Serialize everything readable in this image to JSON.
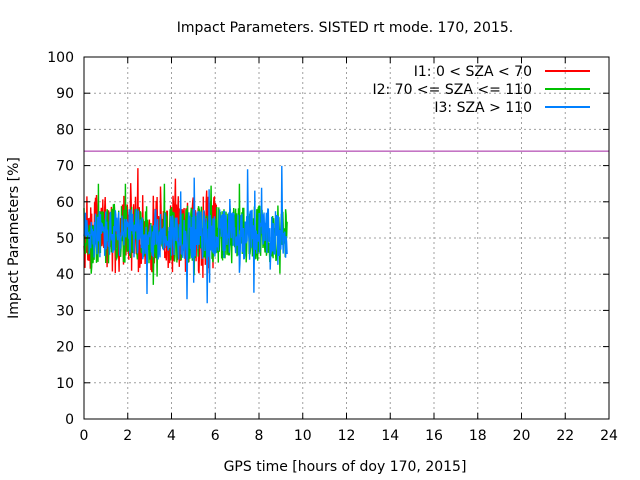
{
  "chart_data": {
    "type": "line",
    "title": "Impact Parameters. SISTED rt mode. 170, 2015.",
    "xlabel": "GPS time [hours of doy 170, 2015]",
    "ylabel": "Impact Parameters [%]",
    "xlim": [
      0,
      24
    ],
    "ylim": [
      0,
      100
    ],
    "xticks": [
      0,
      2,
      4,
      6,
      8,
      10,
      12,
      14,
      16,
      18,
      20,
      22,
      24
    ],
    "yticks": [
      0,
      10,
      20,
      30,
      40,
      50,
      60,
      70,
      80,
      90,
      100
    ],
    "grid": true,
    "legend_position": "top-right",
    "reference_line": {
      "y": 74,
      "color": "#a020a0"
    },
    "series": [
      {
        "name": "I1: 0 < SZA < 70",
        "color": "#ff0000",
        "x_start": 0.0,
        "x_end": 6.1,
        "center": 51,
        "spread": 11,
        "y_min": 34,
        "y_max": 71
      },
      {
        "name": "I2: 70 <= SZA <= 110",
        "color": "#00c000",
        "x_start": 0.0,
        "x_end": 9.3,
        "center": 51,
        "spread": 8,
        "y_min": 35,
        "y_max": 65
      },
      {
        "name": "I3: SZA > 110",
        "color": "#0080ff",
        "x_start": 0.0,
        "x_end": 9.3,
        "center": 51,
        "spread": 7,
        "y_min": 30,
        "y_max": 70
      }
    ]
  }
}
